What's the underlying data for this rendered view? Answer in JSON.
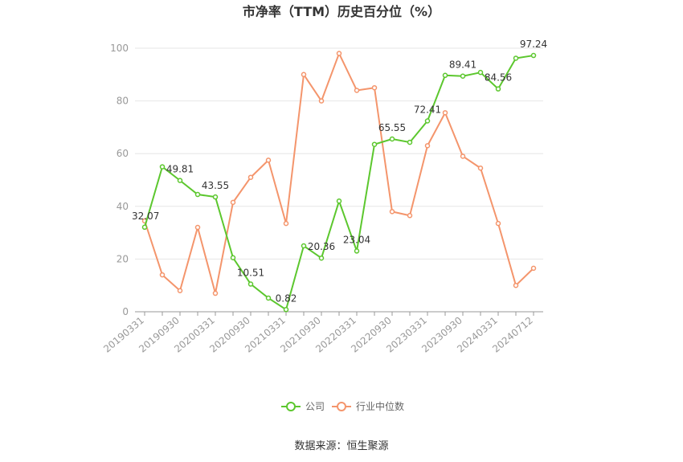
{
  "chart_data": {
    "type": "line",
    "title": "市净率（TTM）历史百分位（%）",
    "ylim": [
      0,
      100
    ],
    "yticks": [
      0,
      20,
      40,
      60,
      80,
      100
    ],
    "grid": true,
    "legend_position": "bottom-center",
    "x": [
      "20190331",
      "20190630",
      "20190930",
      "20191231",
      "20200331",
      "20200630",
      "20200930",
      "20201231",
      "20210331",
      "20210630",
      "20210930",
      "20211231",
      "20220331",
      "20220630",
      "20220930",
      "20221231",
      "20230331",
      "20230630",
      "20230930",
      "20231231",
      "20240331",
      "20240630",
      "20240712"
    ],
    "xtick_labels": [
      "20190331",
      "20190930",
      "20200331",
      "20200930",
      "20210331",
      "20210930",
      "20220331",
      "20220930",
      "20230331",
      "20230930",
      "20240331",
      "20240712"
    ],
    "series": [
      {
        "name": "公司",
        "color": "#5cc72e",
        "values": [
          32.07,
          55.0,
          49.81,
          44.5,
          43.55,
          20.5,
          10.51,
          5.2,
          0.82,
          25.0,
          20.36,
          42.0,
          23.04,
          63.5,
          65.55,
          64.3,
          72.41,
          89.7,
          89.41,
          90.8,
          84.56,
          96.2,
          97.24
        ],
        "labels": {
          "0": "32.07",
          "2": "49.81",
          "4": "43.55",
          "6": "10.51",
          "8": "0.82",
          "10": "20.36",
          "12": "23.04",
          "14": "65.55",
          "16": "72.41",
          "18": "89.41",
          "20": "84.56",
          "22": "97.24"
        }
      },
      {
        "name": "行业中位数",
        "color": "#f4956c",
        "values": [
          34.5,
          14.0,
          8.0,
          32.0,
          7.0,
          41.5,
          51.0,
          57.5,
          33.5,
          90.0,
          80.0,
          98.0,
          84.0,
          85.0,
          38.0,
          36.5,
          63.0,
          75.5,
          59.0,
          54.5,
          33.5,
          10.0,
          16.5
        ]
      }
    ]
  },
  "source_text": "数据来源：恒生聚源"
}
